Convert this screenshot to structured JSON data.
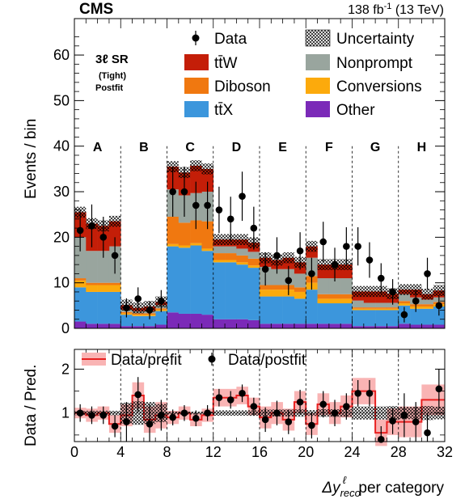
{
  "header": {
    "experiment": "CMS",
    "luminosity": "138 fb",
    "lumi_exp": "-1",
    "energy": " (13 TeV)"
  },
  "region": {
    "line1": "3ℓ SR",
    "line2": "(Tight)",
    "line3": "Postfit"
  },
  "colors": {
    "ttW": "#c41e08",
    "Diboson": "#f07810",
    "ttX": "#3c96dc",
    "Nonprompt": "#99a59e",
    "Conversions": "#fcaa0c",
    "Other": "#7b2ab8",
    "prefit": "#f08080"
  },
  "chart_data": [
    {
      "type": "bar",
      "stacked": true,
      "ylabel": "Events / bin",
      "ylim": [
        0,
        68
      ],
      "yticks": [
        0,
        10,
        20,
        30,
        40,
        50,
        60
      ],
      "xlim": [
        0,
        32
      ],
      "grid": false,
      "legend_placement": "top",
      "categories": [
        "A",
        "B",
        "C",
        "D",
        "E",
        "F",
        "G",
        "H"
      ],
      "category_boundaries": [
        4,
        8,
        12,
        16,
        20,
        24,
        28
      ],
      "bins": [
        "0",
        "1",
        "2",
        "3",
        "4",
        "5",
        "6",
        "7",
        "8",
        "9",
        "10",
        "11",
        "12",
        "13",
        "14",
        "15",
        "16",
        "17",
        "18",
        "19",
        "20",
        "21",
        "22",
        "23",
        "24",
        "25",
        "26",
        "27",
        "28",
        "29",
        "30",
        "31"
      ],
      "legend": {
        "data": "Data",
        "uncertainty": "Uncertainty",
        "ttW": "tt̄W",
        "Nonprompt": "Nonprompt",
        "Diboson": "Diboson",
        "Conversions": "Conversions",
        "ttX": "tt̄X",
        "Other": "Other"
      },
      "series": [
        {
          "key": "Other",
          "values": [
            1.5,
            1.0,
            1.0,
            1.0,
            0.5,
            0.5,
            0.5,
            0.8,
            3.5,
            3.2,
            3.2,
            3.0,
            2.0,
            2.0,
            2.0,
            1.8,
            1.0,
            1.0,
            1.0,
            1.0,
            1.0,
            1.0,
            1.0,
            1.0,
            0.5,
            0.5,
            0.5,
            0.5,
            1.0,
            0.8,
            0.8,
            0.8
          ]
        },
        {
          "key": "ttX",
          "values": [
            7.5,
            7.0,
            7.0,
            7.0,
            2.5,
            2.2,
            2.2,
            3.0,
            14.5,
            14.5,
            15.0,
            14.0,
            12.5,
            12.5,
            12.0,
            11.5,
            6.0,
            6.0,
            6.0,
            5.5,
            7.5,
            4.5,
            4.5,
            4.5,
            3.5,
            3.5,
            3.5,
            3.5,
            4.0,
            3.5,
            3.5,
            4.0
          ]
        },
        {
          "key": "Conversions",
          "values": [
            1.5,
            1.5,
            1.5,
            1.5,
            0.3,
            0.3,
            0.3,
            0.3,
            0.5,
            0.5,
            0.5,
            0.5,
            0.5,
            0.5,
            0.5,
            0.5,
            1.5,
            1.5,
            1.5,
            1.5,
            1.5,
            1.0,
            1.0,
            1.0,
            0.3,
            0.3,
            0.3,
            0.3,
            0.5,
            0.5,
            0.5,
            0.5
          ]
        },
        {
          "key": "Diboson",
          "values": [
            0.5,
            0.5,
            0.5,
            0.5,
            0.3,
            0.3,
            0.3,
            0.3,
            6.0,
            5.0,
            5.0,
            6.0,
            1.5,
            1.5,
            1.5,
            1.5,
            1.0,
            1.0,
            1.0,
            1.0,
            1.5,
            1.0,
            1.0,
            1.0,
            0.3,
            0.3,
            0.3,
            0.3,
            0.5,
            0.5,
            0.5,
            0.5
          ]
        },
        {
          "key": "Nonprompt",
          "values": [
            9.0,
            7.0,
            7.0,
            8.0,
            0.5,
            0.5,
            0.5,
            0.7,
            6.0,
            6.0,
            6.0,
            6.5,
            1.5,
            1.5,
            1.5,
            1.5,
            4.0,
            3.5,
            3.5,
            3.0,
            4.0,
            3.5,
            3.5,
            3.5,
            1.5,
            1.0,
            1.0,
            1.0,
            1.5,
            1.5,
            1.0,
            1.0
          ]
        },
        {
          "key": "ttW",
          "values": [
            5.5,
            6.0,
            5.5,
            5.5,
            1.0,
            0.7,
            1.0,
            0.7,
            5.0,
            5.0,
            6.0,
            5.0,
            1.5,
            1.5,
            2.0,
            2.0,
            2.0,
            2.0,
            2.5,
            2.5,
            2.5,
            3.0,
            3.0,
            3.0,
            2.0,
            2.5,
            2.5,
            2.0,
            1.0,
            1.7,
            1.2,
            1.5
          ]
        }
      ],
      "data_points": [
        {
          "y": 21.5,
          "err": 4.6
        },
        {
          "y": 22.5,
          "err": 4.7
        },
        {
          "y": 20.0,
          "err": 4.5
        },
        {
          "y": 16.0,
          "err": 4.0
        },
        {
          "y": 4.5,
          "err": 2.1
        },
        {
          "y": 6.5,
          "err": 2.5
        },
        {
          "y": 4.0,
          "err": 2.0
        },
        {
          "y": 6.0,
          "err": 2.4
        },
        {
          "y": 30.0,
          "err": 5.5
        },
        {
          "y": 30.0,
          "err": 5.5
        },
        {
          "y": 27.0,
          "err": 5.2
        },
        {
          "y": 27.0,
          "err": 5.2
        },
        {
          "y": 26.0,
          "err": 5.1
        },
        {
          "y": 24.0,
          "err": 4.9
        },
        {
          "y": 29.0,
          "err": 5.4
        },
        {
          "y": 22.0,
          "err": 4.7
        },
        {
          "y": 13.0,
          "err": 3.6
        },
        {
          "y": 16.0,
          "err": 4.0
        },
        {
          "y": 10.5,
          "err": 3.2
        },
        {
          "y": 17.0,
          "err": 4.1
        },
        {
          "y": 12.0,
          "err": 3.5
        },
        {
          "y": 19.0,
          "err": 4.4
        },
        {
          "y": 14.0,
          "err": 3.7
        },
        {
          "y": 18.0,
          "err": 4.2
        },
        {
          "y": 18.0,
          "err": 4.2
        },
        {
          "y": 15.0,
          "err": 3.9
        },
        {
          "y": 11.0,
          "err": 3.3
        },
        {
          "y": 8.0,
          "err": 2.8
        },
        {
          "y": 3.0,
          "err": 1.7
        },
        {
          "y": 6.0,
          "err": 2.4
        },
        {
          "y": 12.0,
          "err": 3.5
        },
        {
          "y": 5.0,
          "err": 2.2
        }
      ],
      "uncertainty_half_width": 1.2
    },
    {
      "type": "line",
      "ylabel": "Data / Pred.",
      "xlabel_main": "Δy",
      "xlabel_sub": "reco",
      "xlabel_sup": "ℓ",
      "xlabel_rest": "  per category",
      "ylim": [
        0.35,
        2.45
      ],
      "yticks": [
        1,
        2
      ],
      "xlim": [
        0,
        32
      ],
      "xticks": [
        0,
        4,
        8,
        12,
        16,
        20,
        24,
        28,
        32
      ],
      "legend": {
        "prefit": "Data/prefit",
        "postfit": "Data/postfit"
      },
      "prefit_ratio": [
        1.0,
        0.95,
        1.0,
        0.75,
        0.95,
        1.4,
        0.85,
        0.95,
        0.9,
        1.0,
        0.85,
        0.95,
        1.35,
        1.35,
        1.4,
        1.15,
        0.9,
        1.0,
        0.85,
        1.25,
        0.75,
        1.2,
        1.0,
        1.15,
        1.5,
        1.5,
        0.55,
        0.8,
        0.8,
        0.8,
        1.3,
        1.3
      ],
      "prefit_err": [
        0.12,
        0.15,
        0.15,
        0.2,
        0.25,
        0.3,
        0.3,
        0.3,
        0.15,
        0.15,
        0.15,
        0.15,
        0.2,
        0.2,
        0.2,
        0.2,
        0.25,
        0.25,
        0.25,
        0.25,
        0.25,
        0.25,
        0.25,
        0.25,
        0.3,
        0.3,
        0.3,
        0.3,
        0.35,
        0.35,
        0.35,
        0.35
      ],
      "postfit_ratio": [
        1.0,
        0.95,
        0.95,
        0.7,
        0.8,
        1.42,
        0.75,
        0.95,
        0.9,
        1.0,
        0.88,
        1.0,
        1.35,
        1.3,
        1.45,
        1.15,
        0.85,
        1.0,
        0.8,
        1.25,
        0.72,
        1.2,
        1.0,
        1.15,
        1.45,
        1.45,
        0.4,
        0.82,
        0.95,
        0.8,
        0.55,
        1.55
      ],
      "postfit_err": [
        0.2,
        0.2,
        0.2,
        0.25,
        0.45,
        0.4,
        0.45,
        0.35,
        0.18,
        0.18,
        0.18,
        0.18,
        0.2,
        0.2,
        0.2,
        0.2,
        0.28,
        0.28,
        0.28,
        0.28,
        0.3,
        0.3,
        0.3,
        0.3,
        0.3,
        0.3,
        0.3,
        0.3,
        0.5,
        0.45,
        0.45,
        0.45
      ]
    }
  ]
}
